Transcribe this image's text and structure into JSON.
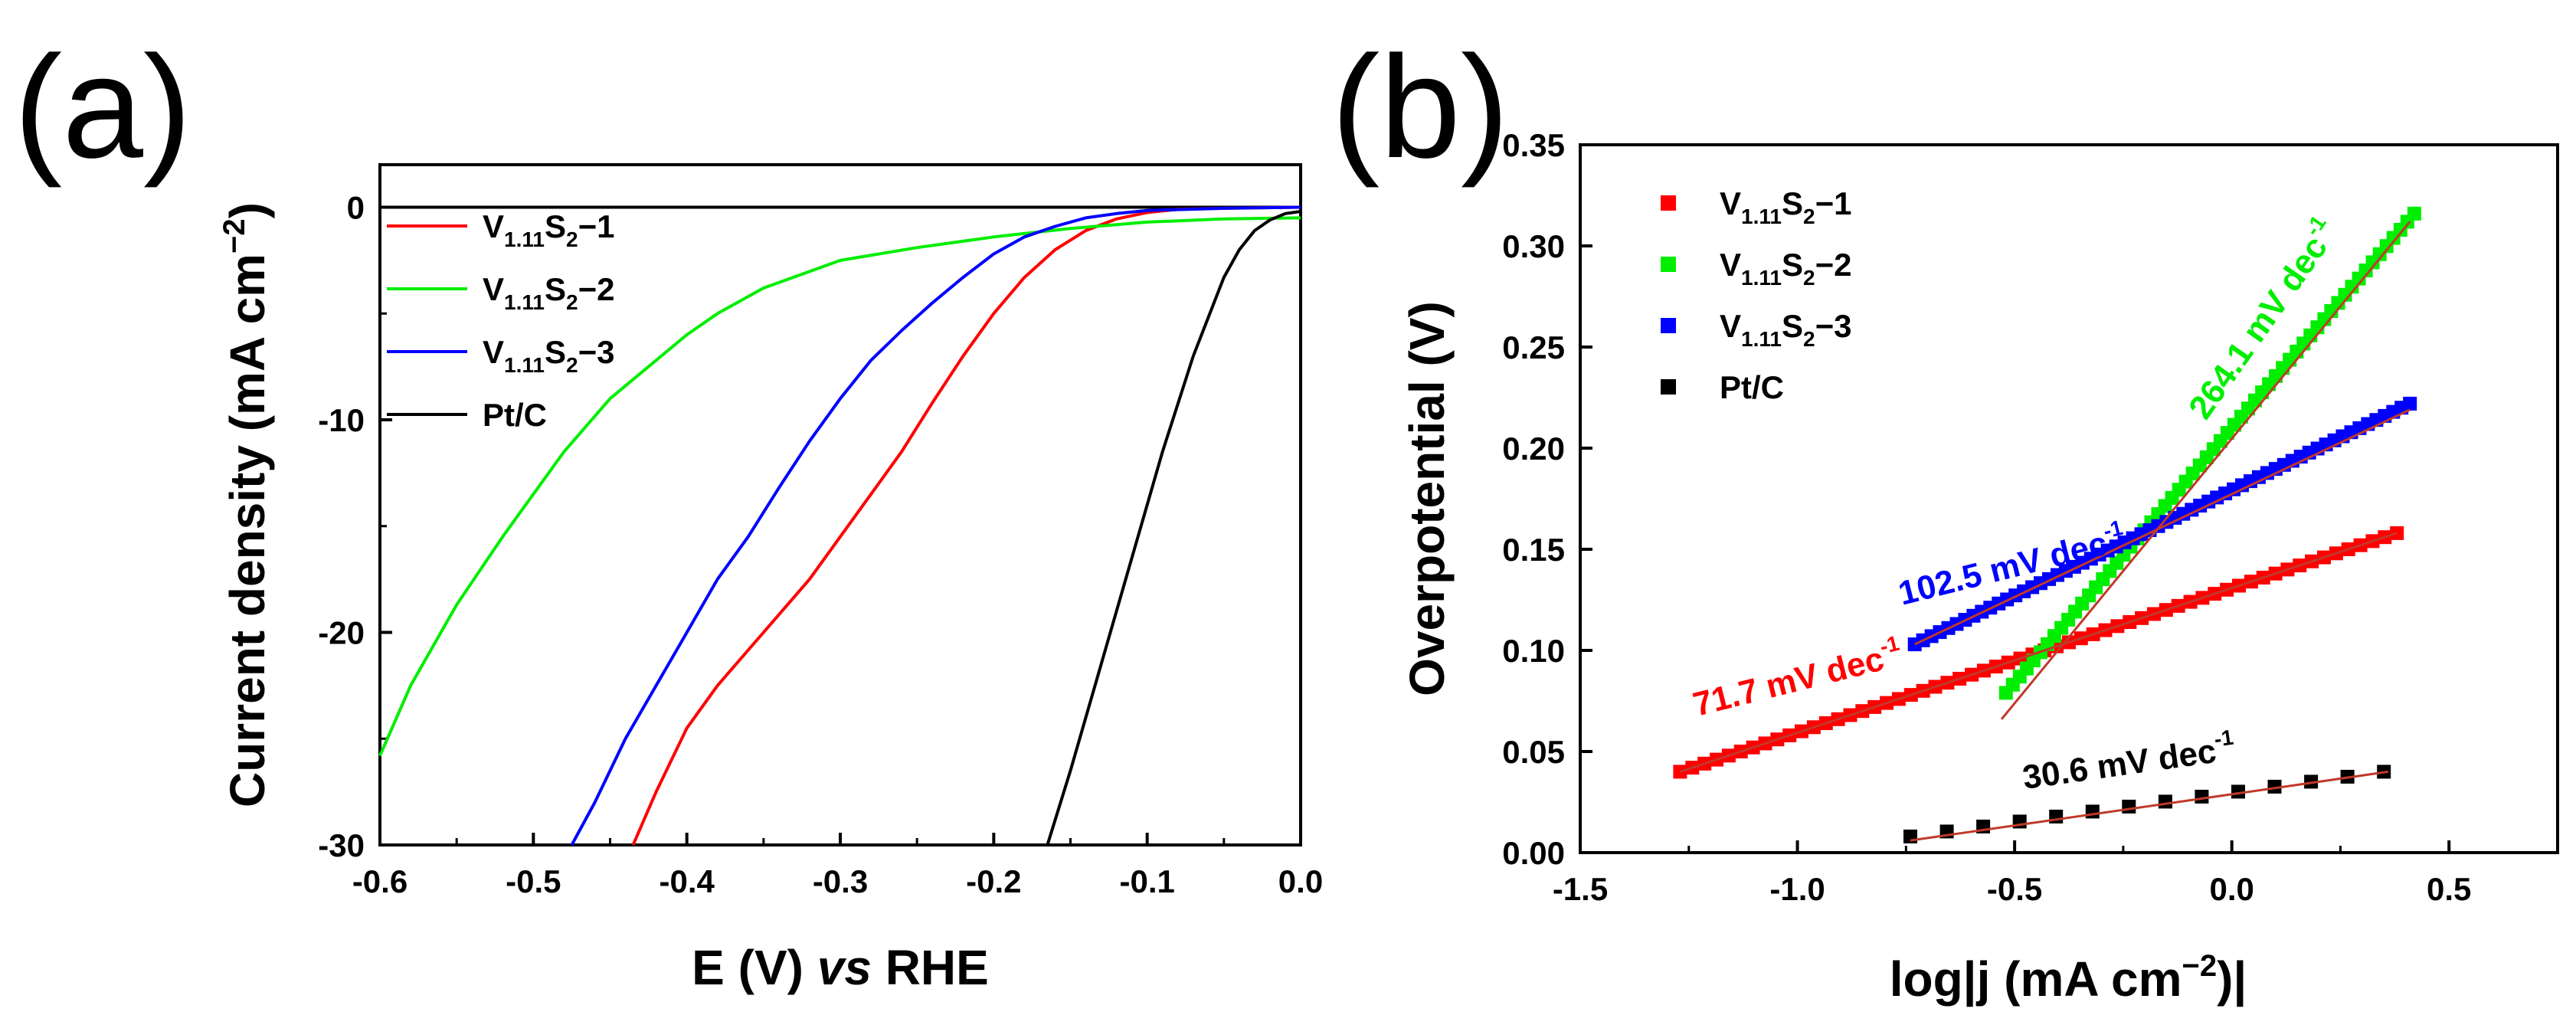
{
  "colors": {
    "red": "#ff0000",
    "green": "#00ee00",
    "blue": "#0000ff",
    "black": "#000000",
    "fit": "#c0392b"
  },
  "chart_data": [
    {
      "panel": "(a)",
      "type": "line",
      "xlabel": "E (V) vs RHE",
      "ylabel": "Current density (mA cm−2)",
      "xlim": [
        -0.6,
        0.0
      ],
      "ylim": [
        -30,
        2
      ],
      "xticks": [
        -0.6,
        -0.5,
        -0.4,
        -0.3,
        -0.2,
        -0.1,
        0.0
      ],
      "xtick_labels": [
        "-0.6",
        "-0.5",
        "-0.4",
        "-0.3",
        "-0.2",
        "-0.1",
        "0.0"
      ],
      "yticks": [
        0,
        -10,
        -20,
        -30
      ],
      "ytick_labels": [
        "0",
        "-10",
        "-20",
        "-30"
      ],
      "legend_position": "top-left",
      "series": [
        {
          "name": "V1.11S2−1",
          "base": "V",
          "sub1": "1.11",
          "mid": "S",
          "sub2": "2",
          "tail": "−1",
          "color": "red",
          "x": [
            -0.435,
            -0.42,
            -0.4,
            -0.38,
            -0.35,
            -0.32,
            -0.3,
            -0.28,
            -0.26,
            -0.24,
            -0.22,
            -0.2,
            -0.18,
            -0.16,
            -0.14,
            -0.12,
            -0.1,
            -0.08,
            -0.05,
            0.0
          ],
          "y": [
            -30,
            -27.5,
            -24.5,
            -22.5,
            -20,
            -17.5,
            -15.5,
            -13.5,
            -11.5,
            -9.2,
            -7.0,
            -5.0,
            -3.3,
            -2.0,
            -1.1,
            -0.55,
            -0.25,
            -0.1,
            -0.05,
            0
          ]
        },
        {
          "name": "V1.11S2−2",
          "base": "V",
          "sub1": "1.11",
          "mid": "S",
          "sub2": "2",
          "tail": "−2",
          "color": "green",
          "x": [
            -0.6,
            -0.58,
            -0.55,
            -0.52,
            -0.5,
            -0.48,
            -0.45,
            -0.42,
            -0.4,
            -0.38,
            -0.35,
            -0.3,
            -0.25,
            -0.2,
            -0.15,
            -0.1,
            -0.05,
            0.0
          ],
          "y": [
            -25.8,
            -22.5,
            -18.7,
            -15.5,
            -13.5,
            -11.5,
            -9.0,
            -7.2,
            -6.0,
            -5.0,
            -3.8,
            -2.5,
            -1.9,
            -1.4,
            -1.0,
            -0.7,
            -0.55,
            -0.5
          ]
        },
        {
          "name": "V1.11S2−3",
          "base": "V",
          "sub1": "1.11",
          "mid": "S",
          "sub2": "2",
          "tail": "−3",
          "color": "blue",
          "x": [
            -0.475,
            -0.46,
            -0.44,
            -0.42,
            -0.4,
            -0.38,
            -0.36,
            -0.34,
            -0.32,
            -0.3,
            -0.28,
            -0.26,
            -0.24,
            -0.22,
            -0.2,
            -0.18,
            -0.16,
            -0.14,
            -0.12,
            -0.1,
            -0.05,
            0.0
          ],
          "y": [
            -30,
            -28,
            -25,
            -22.5,
            -20,
            -17.5,
            -15.5,
            -13.2,
            -11.0,
            -9.0,
            -7.2,
            -5.8,
            -4.5,
            -3.3,
            -2.2,
            -1.4,
            -0.9,
            -0.5,
            -0.3,
            -0.15,
            -0.05,
            0
          ]
        },
        {
          "name": "Pt/C",
          "base": "Pt/C",
          "sub1": "",
          "mid": "",
          "sub2": "",
          "tail": "",
          "color": "black",
          "x": [
            -0.165,
            -0.15,
            -0.13,
            -0.11,
            -0.09,
            -0.07,
            -0.05,
            -0.04,
            -0.03,
            -0.02,
            -0.01,
            0.0
          ],
          "y": [
            -30,
            -26.5,
            -21.5,
            -16.5,
            -11.5,
            -7.0,
            -3.3,
            -2.0,
            -1.1,
            -0.6,
            -0.3,
            -0.2
          ]
        }
      ]
    },
    {
      "panel": "(b)",
      "type": "scatter",
      "xlabel": "log|j (mA cm−2)|",
      "ylabel": "Overpotential (V)",
      "xlim": [
        -1.5,
        0.75
      ],
      "ylim": [
        0.0,
        0.35
      ],
      "xticks": [
        -1.5,
        -1.0,
        -0.5,
        0.0,
        0.5
      ],
      "xtick_labels": [
        "-1.5",
        "-1.0",
        "-0.5",
        "0.0",
        "0.5"
      ],
      "yticks": [
        0.0,
        0.05,
        0.1,
        0.15,
        0.2,
        0.25,
        0.3,
        0.35
      ],
      "ytick_labels": [
        "0.00",
        "0.05",
        "0.10",
        "0.15",
        "0.20",
        "0.25",
        "0.30",
        "0.35"
      ],
      "legend_position": "top-left",
      "series": [
        {
          "name": "V1.11S2−1",
          "base": "V",
          "sub1": "1.11",
          "mid": "S",
          "sub2": "2",
          "tail": "−1",
          "color": "red",
          "x_range": [
            -1.27,
            0.38
          ],
          "y_range": [
            0.04,
            0.158
          ],
          "n_points": 60,
          "fit_x": [
            -1.27,
            0.38
          ],
          "fit_y": [
            0.04,
            0.158
          ],
          "slope_label": "71.7 mV dec",
          "slope_sup": "-1"
        },
        {
          "name": "V1.11S2−2",
          "base": "V",
          "sub1": "1.11",
          "mid": "S",
          "sub2": "2",
          "tail": "−2",
          "color": "green",
          "x_range": [
            -0.52,
            0.42
          ],
          "y_range": [
            0.079,
            0.316
          ],
          "n_points": 60,
          "fit_x": [
            -0.53,
            0.41
          ],
          "fit_y": [
            0.066,
            0.312
          ],
          "slope_label": "264.1 mV dec",
          "slope_sup": "-1"
        },
        {
          "name": "V1.11S2−3",
          "base": "V",
          "sub1": "1.11",
          "mid": "S",
          "sub2": "2",
          "tail": "−3",
          "color": "blue",
          "x_range": [
            -0.73,
            0.41
          ],
          "y_range": [
            0.103,
            0.222
          ],
          "n_points": 60,
          "fit_x": [
            -0.73,
            0.41
          ],
          "fit_y": [
            0.103,
            0.219
          ],
          "slope_label": "102.5 mV dec",
          "slope_sup": "-1"
        },
        {
          "name": "Pt/C",
          "base": "Pt/C",
          "sub1": "",
          "mid": "",
          "sub2": "",
          "tail": "",
          "color": "black",
          "x_range": [
            -0.74,
            0.35
          ],
          "y_range": [
            0.008,
            0.04
          ],
          "n_points": 14,
          "fit_x": [
            -0.74,
            0.36
          ],
          "fit_y": [
            0.006,
            0.04
          ],
          "slope_label": "30.6 mV dec",
          "slope_sup": "-1"
        }
      ]
    }
  ]
}
